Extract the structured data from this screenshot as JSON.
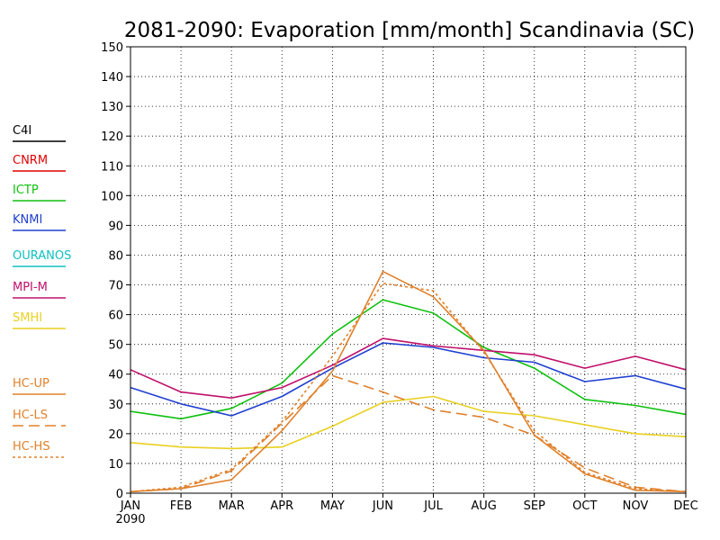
{
  "chart_data": {
    "type": "line",
    "title": "2081-2090: Evaporation [mm/month] Scandinavia (SC)",
    "xlabel": "",
    "ylabel": "",
    "categories": [
      "JAN",
      "FEB",
      "MAR",
      "APR",
      "MAY",
      "JUN",
      "JUL",
      "AUG",
      "SEP",
      "OCT",
      "NOV",
      "DEC"
    ],
    "x_sublabel": "2090",
    "ylim": [
      0,
      150
    ],
    "yticks": [
      "0",
      "10",
      "20",
      "30",
      "40",
      "50",
      "60",
      "70",
      "80",
      "90",
      "100",
      "110",
      "120",
      "130",
      "140",
      "150"
    ],
    "grid": true,
    "legend_position": "left",
    "series": [
      {
        "name": "C4I",
        "color": "#000000",
        "dash": "solid",
        "values": null
      },
      {
        "name": "CNRM",
        "color": "#e00000",
        "dash": "solid",
        "values": null
      },
      {
        "name": "ICTP",
        "color": "#10c010",
        "dash": "solid",
        "values": [
          27.5,
          25,
          28.5,
          37,
          53.5,
          65,
          60.5,
          49,
          42,
          31.5,
          29.5,
          26.5
        ]
      },
      {
        "name": "KNMI",
        "color": "#2040d0",
        "dash": "solid",
        "values": [
          35.5,
          30,
          26,
          32.5,
          42,
          50.5,
          49,
          45.5,
          44,
          37.5,
          39.5,
          35
        ]
      },
      {
        "name": "OURANOS",
        "color": "#10c0c0",
        "dash": "solid",
        "values": null
      },
      {
        "name": "MPI-M",
        "color": "#c0106a",
        "dash": "solid",
        "values": [
          41.5,
          34,
          32,
          35.5,
          43,
          52,
          49.5,
          48,
          46.5,
          42,
          46,
          41.5
        ]
      },
      {
        "name": "SMHI",
        "color": "#e8d020",
        "dash": "solid",
        "values": [
          17,
          15.5,
          15,
          15.5,
          22.5,
          30.5,
          32.5,
          27.5,
          26,
          23,
          20,
          19
        ]
      },
      {
        "name": "HC-UP",
        "color": "#e0802a",
        "dash": "solid",
        "values": [
          0.5,
          1.5,
          4.5,
          21,
          41,
          74.5,
          66,
          48,
          19.5,
          6.5,
          1,
          0.5
        ]
      },
      {
        "name": "HC-LS",
        "color": "#e0802a",
        "dash": "longdash",
        "values": [
          0.5,
          1.5,
          7.5,
          23.5,
          39.5,
          34,
          28,
          25.5,
          19.5,
          8.5,
          2,
          0.5
        ]
      },
      {
        "name": "HC-HS",
        "color": "#e0802a",
        "dash": "shortdash",
        "values": [
          0.5,
          2,
          8,
          24,
          46,
          70.5,
          68,
          47.5,
          21,
          7,
          1.5,
          0.5
        ]
      }
    ]
  }
}
